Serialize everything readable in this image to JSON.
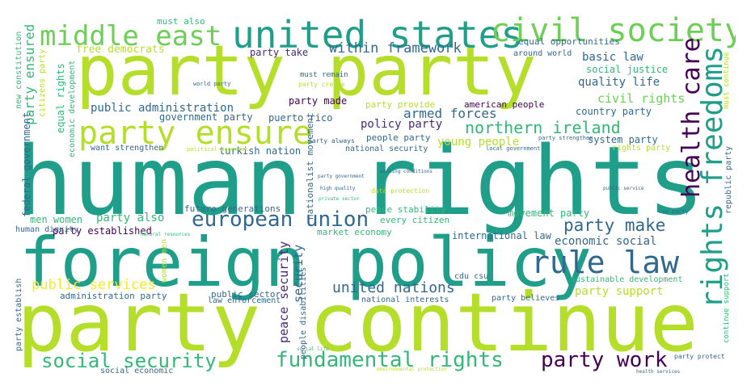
{
  "palette": {
    "lime": "#b5de2b",
    "green": "#6ece58",
    "teal": "#1f9e89",
    "seagreen": "#35b779",
    "blue": "#31688e",
    "navy": "#3e4989",
    "purple": "#440154",
    "yellow": "#fde725",
    "darkpurple": "#482878",
    "cyan": "#26828e"
  },
  "words": [
    {
      "text": "human rights",
      "color": "teal"
    },
    {
      "text": "party continue",
      "color": "lime"
    },
    {
      "text": "party party",
      "color": "lime"
    },
    {
      "text": "foreign policy",
      "color": "teal"
    },
    {
      "text": "united states",
      "color": "teal"
    },
    {
      "text": "party ensure",
      "color": "lime"
    },
    {
      "text": "civil society",
      "color": "green"
    },
    {
      "text": "middle east",
      "color": "green"
    },
    {
      "text": "rule law",
      "color": "blue"
    },
    {
      "text": "european union",
      "color": "blue"
    },
    {
      "text": "rights freedoms",
      "color": "teal"
    },
    {
      "text": "health care",
      "color": "purple"
    },
    {
      "text": "fundamental rights",
      "color": "seagreen"
    },
    {
      "text": "party work",
      "color": "purple"
    },
    {
      "text": "social security",
      "color": "seagreen"
    },
    {
      "text": "northern ireland",
      "color": "seagreen"
    },
    {
      "text": "party make",
      "color": "blue"
    },
    {
      "text": "united nations",
      "color": "blue"
    },
    {
      "text": "public services",
      "color": "yellow"
    },
    {
      "text": "within framework",
      "color": "blue"
    },
    {
      "text": "armed forces",
      "color": "blue"
    },
    {
      "text": "policy party",
      "color": "darkpurple"
    },
    {
      "text": "public administration",
      "color": "blue"
    },
    {
      "text": "quality life",
      "color": "blue"
    },
    {
      "text": "basic law",
      "color": "blue"
    },
    {
      "text": "civil rights",
      "color": "green"
    },
    {
      "text": "economic social",
      "color": "blue"
    },
    {
      "text": "party support",
      "color": "lime"
    },
    {
      "text": "party also",
      "color": "seagreen"
    },
    {
      "text": "party established",
      "color": "purple"
    },
    {
      "text": "men women",
      "color": "seagreen"
    },
    {
      "text": "free democrats",
      "color": "lime"
    },
    {
      "text": "government party",
      "color": "blue"
    },
    {
      "text": "puerto rico",
      "color": "blue"
    },
    {
      "text": "turkish nation",
      "color": "blue"
    },
    {
      "text": "international law",
      "color": "blue"
    },
    {
      "text": "future generations",
      "color": "blue"
    },
    {
      "text": "peace security",
      "color": "darkpurple"
    },
    {
      "text": "security",
      "color": "blue"
    },
    {
      "text": "party ensured",
      "color": "seagreen"
    },
    {
      "text": "equal rights",
      "color": "seagreen"
    },
    {
      "text": "federal government",
      "color": "blue"
    },
    {
      "text": "movement party",
      "color": "seagreen"
    },
    {
      "text": "young people",
      "color": "lime"
    },
    {
      "text": "social justice",
      "color": "seagreen"
    },
    {
      "text": "country party",
      "color": "blue"
    },
    {
      "text": "system party",
      "color": "blue"
    },
    {
      "text": "party made",
      "color": "purple"
    },
    {
      "text": "party take",
      "color": "darkpurple"
    },
    {
      "text": "american people",
      "color": "purple"
    },
    {
      "text": "peace stability",
      "color": "seagreen"
    },
    {
      "text": "every citizen",
      "color": "seagreen"
    },
    {
      "text": "market economy",
      "color": "seagreen"
    },
    {
      "text": "public sector",
      "color": "blue"
    },
    {
      "text": "law enforcement",
      "color": "blue"
    },
    {
      "text": "administration party",
      "color": "blue"
    },
    {
      "text": "social economic",
      "color": "blue"
    },
    {
      "text": "sustainable development",
      "color": "seagreen"
    },
    {
      "text": "national interests",
      "color": "blue"
    },
    {
      "text": "party believes",
      "color": "blue"
    },
    {
      "text": "cdu csu",
      "color": "blue"
    },
    {
      "text": "human dignity",
      "color": "blue"
    },
    {
      "text": "want strengthen",
      "color": "blue"
    },
    {
      "text": "must also",
      "color": "seagreen"
    },
    {
      "text": "equal opportunities",
      "color": "blue"
    },
    {
      "text": "around world",
      "color": "blue"
    },
    {
      "text": "rights party",
      "color": "lime"
    },
    {
      "text": "republic party",
      "color": "blue"
    },
    {
      "text": "party establish",
      "color": "blue"
    },
    {
      "text": "new constitution",
      "color": "seagreen"
    },
    {
      "text": "citizens party",
      "color": "lime"
    },
    {
      "text": "economic development",
      "color": "seagreen"
    },
    {
      "text": "nationalist movement",
      "color": "blue"
    },
    {
      "text": "people disabilities",
      "color": "blue"
    },
    {
      "text": "women men",
      "color": "lime"
    },
    {
      "text": "national security",
      "color": "blue"
    },
    {
      "text": "people party",
      "color": "blue"
    },
    {
      "text": "party provide",
      "color": "lime"
    },
    {
      "text": "must remain",
      "color": "blue"
    },
    {
      "text": "party create",
      "color": "lime"
    },
    {
      "text": "world party",
      "color": "blue"
    },
    {
      "text": "party always",
      "color": "blue"
    },
    {
      "text": "political economic",
      "color": "lime"
    },
    {
      "text": "local government",
      "color": "blue"
    },
    {
      "text": "party strengthen",
      "color": "blue"
    },
    {
      "text": "continue support",
      "color": "seagreen"
    },
    {
      "text": "must continue",
      "color": "lime"
    },
    {
      "text": "party protect",
      "color": "blue"
    },
    {
      "text": "law party",
      "color": "blue"
    },
    {
      "text": "public service",
      "color": "blue"
    },
    {
      "text": "data protection",
      "color": "lime"
    },
    {
      "text": "working conditions",
      "color": "blue"
    },
    {
      "text": "high quality",
      "color": "blue"
    },
    {
      "text": "private sector",
      "color": "seagreen"
    },
    {
      "text": "party government",
      "color": "blue"
    },
    {
      "text": "natural resources",
      "color": "seagreen"
    },
    {
      "text": "social life",
      "color": "seagreen"
    },
    {
      "text": "environmental protection",
      "color": "lime"
    },
    {
      "text": "health services",
      "color": "blue"
    }
  ]
}
